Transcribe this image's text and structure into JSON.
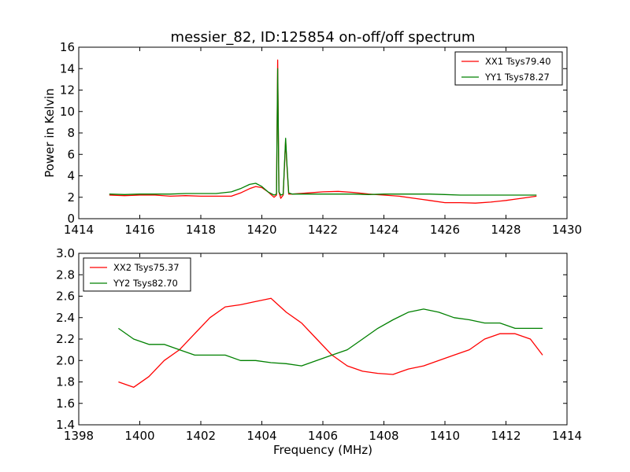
{
  "chart_data": [
    {
      "type": "line",
      "title": "messier_82, ID:125854 on-off/off spectrum",
      "xlabel": "",
      "ylabel": "Power in Kelvin",
      "xlim": [
        1414,
        1430
      ],
      "ylim": [
        0,
        16
      ],
      "xticks": [
        "1414",
        "1416",
        "1418",
        "1420",
        "1422",
        "1424",
        "1426",
        "1428",
        "1430"
      ],
      "yticks": [
        "0",
        "2",
        "4",
        "6",
        "8",
        "10",
        "12",
        "14",
        "16"
      ],
      "legend_position": "top-right",
      "grid": false,
      "series": [
        {
          "name": "XX1 Tsys79.40",
          "color": "#ff0000",
          "x": [
            1415.0,
            1415.5,
            1416.0,
            1416.5,
            1417.0,
            1417.5,
            1418.0,
            1418.5,
            1419.0,
            1419.3,
            1419.6,
            1419.8,
            1420.0,
            1420.2,
            1420.4,
            1420.48,
            1420.52,
            1420.56,
            1420.62,
            1420.7,
            1420.78,
            1420.82,
            1420.88,
            1421.0,
            1421.5,
            1422.0,
            1422.5,
            1423.0,
            1423.5,
            1424.0,
            1424.5,
            1425.0,
            1425.5,
            1426.0,
            1426.5,
            1427.0,
            1427.5,
            1428.0,
            1428.5,
            1429.0
          ],
          "values": [
            2.2,
            2.15,
            2.2,
            2.2,
            2.1,
            2.15,
            2.1,
            2.1,
            2.1,
            2.4,
            2.8,
            3.0,
            2.9,
            2.5,
            2.0,
            2.2,
            14.8,
            2.5,
            1.9,
            2.2,
            7.3,
            5.0,
            2.3,
            2.3,
            2.4,
            2.5,
            2.55,
            2.45,
            2.3,
            2.2,
            2.1,
            1.9,
            1.7,
            1.5,
            1.5,
            1.45,
            1.55,
            1.7,
            1.9,
            2.1
          ]
        },
        {
          "name": "YY1 Tsys78.27",
          "color": "#008000",
          "x": [
            1415.0,
            1415.5,
            1416.0,
            1416.5,
            1417.0,
            1417.5,
            1418.0,
            1418.5,
            1419.0,
            1419.3,
            1419.6,
            1419.8,
            1420.0,
            1420.2,
            1420.4,
            1420.48,
            1420.52,
            1420.56,
            1420.62,
            1420.7,
            1420.78,
            1420.82,
            1420.88,
            1421.0,
            1421.5,
            1422.0,
            1422.5,
            1423.0,
            1423.5,
            1424.0,
            1424.5,
            1425.0,
            1425.5,
            1426.0,
            1426.5,
            1427.0,
            1427.5,
            1428.0,
            1428.5,
            1429.0
          ],
          "values": [
            2.3,
            2.25,
            2.3,
            2.3,
            2.3,
            2.35,
            2.35,
            2.35,
            2.5,
            2.8,
            3.2,
            3.3,
            3.0,
            2.5,
            2.2,
            2.3,
            14.0,
            2.5,
            2.2,
            2.3,
            7.5,
            5.2,
            2.4,
            2.3,
            2.3,
            2.3,
            2.3,
            2.3,
            2.25,
            2.3,
            2.3,
            2.3,
            2.3,
            2.25,
            2.2,
            2.2,
            2.2,
            2.2,
            2.2,
            2.2
          ]
        }
      ]
    },
    {
      "type": "line",
      "title": "",
      "xlabel": "Frequency (MHz)",
      "ylabel": "",
      "xlim": [
        1398,
        1414
      ],
      "ylim": [
        1.4,
        3.0
      ],
      "xticks": [
        "1398",
        "1400",
        "1402",
        "1404",
        "1406",
        "1408",
        "1410",
        "1412",
        "1414"
      ],
      "yticks": [
        "1.4",
        "1.6",
        "1.8",
        "2.0",
        "2.2",
        "2.4",
        "2.6",
        "2.8",
        "3.0"
      ],
      "legend_position": "top-left",
      "grid": false,
      "series": [
        {
          "name": "XX2 Tsys75.37",
          "color": "#ff0000",
          "x": [
            1399.3,
            1399.8,
            1400.3,
            1400.8,
            1401.3,
            1401.8,
            1402.3,
            1402.8,
            1403.3,
            1403.8,
            1404.3,
            1404.8,
            1405.3,
            1405.8,
            1406.3,
            1406.8,
            1407.3,
            1407.8,
            1408.3,
            1408.8,
            1409.3,
            1409.8,
            1410.3,
            1410.8,
            1411.3,
            1411.8,
            1412.3,
            1412.8,
            1413.2
          ],
          "values": [
            1.8,
            1.75,
            1.85,
            2.0,
            2.1,
            2.25,
            2.4,
            2.5,
            2.52,
            2.55,
            2.58,
            2.45,
            2.35,
            2.2,
            2.05,
            1.95,
            1.9,
            1.88,
            1.87,
            1.92,
            1.95,
            2.0,
            2.05,
            2.1,
            2.2,
            2.25,
            2.25,
            2.2,
            2.05
          ]
        },
        {
          "name": "YY2 Tsys82.70",
          "color": "#008000",
          "x": [
            1399.3,
            1399.8,
            1400.3,
            1400.8,
            1401.3,
            1401.8,
            1402.3,
            1402.8,
            1403.3,
            1403.8,
            1404.3,
            1404.8,
            1405.3,
            1405.8,
            1406.3,
            1406.8,
            1407.3,
            1407.8,
            1408.3,
            1408.8,
            1409.3,
            1409.8,
            1410.3,
            1410.8,
            1411.3,
            1411.8,
            1412.3,
            1412.8,
            1413.2
          ],
          "values": [
            2.3,
            2.2,
            2.15,
            2.15,
            2.1,
            2.05,
            2.05,
            2.05,
            2.0,
            2.0,
            1.98,
            1.97,
            1.95,
            2.0,
            2.05,
            2.1,
            2.2,
            2.3,
            2.38,
            2.45,
            2.48,
            2.45,
            2.4,
            2.38,
            2.35,
            2.35,
            2.3,
            2.3,
            2.3
          ]
        }
      ]
    }
  ]
}
